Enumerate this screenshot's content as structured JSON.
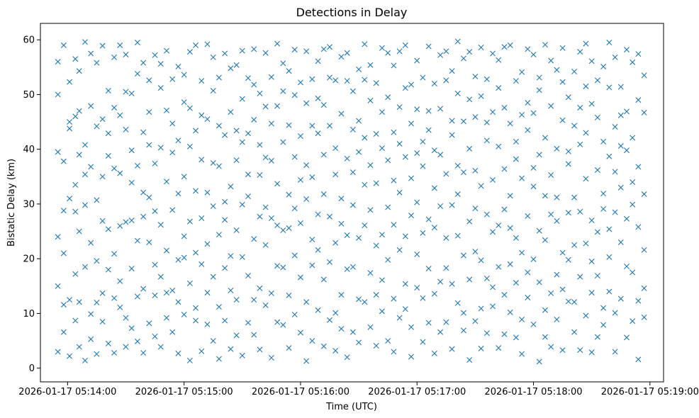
{
  "chart_data": {
    "type": "scatter",
    "title": "Detections in Delay",
    "xlabel": "Time (UTC)",
    "ylabel": "Bistatic Delay (km)",
    "marker": "x",
    "color": "#1f77b4",
    "x_unit": "datetime",
    "xlim": [
      "2026-01-17 05:13:46",
      "2026-01-17 05:19:07"
    ],
    "ylim": [
      -2.5,
      63
    ],
    "x_ticks": [
      "2026-01-17 05:14:00",
      "2026-01-17 05:15:00",
      "2026-01-17 05:16:00",
      "2026-01-17 05:17:00",
      "2026-01-17 05:18:00",
      "2026-01-17 05:19:00"
    ],
    "y_ticks": [
      0,
      10,
      20,
      30,
      40,
      50,
      60
    ],
    "grid": false,
    "legend": "none",
    "points_x": [
      "2026-01-17 05:13:55",
      "2026-01-17 05:13:58",
      "2026-01-17 05:14:01",
      "2026-01-17 05:14:04",
      "2026-01-17 05:14:06",
      "2026-01-17 05:14:09",
      "2026-01-17 05:14:12",
      "2026-01-17 05:14:15",
      "2026-01-17 05:14:18",
      "2026-01-17 05:14:21",
      "2026-01-17 05:14:24",
      "2026-01-17 05:14:27",
      "2026-01-17 05:14:30",
      "2026-01-17 05:14:33",
      "2026-01-17 05:14:36",
      "2026-01-17 05:14:39",
      "2026-01-17 05:14:42",
      "2026-01-17 05:14:45",
      "2026-01-17 05:14:48",
      "2026-01-17 05:14:51",
      "2026-01-17 05:14:54",
      "2026-01-17 05:14:57",
      "2026-01-17 05:15:00",
      "2026-01-17 05:15:03",
      "2026-01-17 05:15:06",
      "2026-01-17 05:15:09",
      "2026-01-17 05:15:12",
      "2026-01-17 05:15:15",
      "2026-01-17 05:15:18",
      "2026-01-17 05:15:21",
      "2026-01-17 05:15:24",
      "2026-01-17 05:15:27",
      "2026-01-17 05:15:30",
      "2026-01-17 05:15:33",
      "2026-01-17 05:15:36",
      "2026-01-17 05:15:39",
      "2026-01-17 05:15:42",
      "2026-01-17 05:15:45",
      "2026-01-17 05:15:48",
      "2026-01-17 05:15:51",
      "2026-01-17 05:15:54",
      "2026-01-17 05:15:57",
      "2026-01-17 05:16:00",
      "2026-01-17 05:16:03",
      "2026-01-17 05:16:06",
      "2026-01-17 05:16:09",
      "2026-01-17 05:16:12",
      "2026-01-17 05:16:15",
      "2026-01-17 05:16:18",
      "2026-01-17 05:16:21",
      "2026-01-17 05:16:24",
      "2026-01-17 05:16:27",
      "2026-01-17 05:16:30",
      "2026-01-17 05:16:33",
      "2026-01-17 05:16:36",
      "2026-01-17 05:16:39",
      "2026-01-17 05:16:42",
      "2026-01-17 05:16:45",
      "2026-01-17 05:16:48",
      "2026-01-17 05:16:51",
      "2026-01-17 05:16:54",
      "2026-01-17 05:16:57",
      "2026-01-17 05:17:00",
      "2026-01-17 05:17:03",
      "2026-01-17 05:17:06",
      "2026-01-17 05:17:09",
      "2026-01-17 05:17:12",
      "2026-01-17 05:17:15",
      "2026-01-17 05:17:18",
      "2026-01-17 05:17:21",
      "2026-01-17 05:17:24",
      "2026-01-17 05:17:27",
      "2026-01-17 05:17:30",
      "2026-01-17 05:17:33",
      "2026-01-17 05:17:36",
      "2026-01-17 05:17:39",
      "2026-01-17 05:17:42",
      "2026-01-17 05:17:45",
      "2026-01-17 05:17:48",
      "2026-01-17 05:17:51",
      "2026-01-17 05:17:54",
      "2026-01-17 05:17:57",
      "2026-01-17 05:18:00",
      "2026-01-17 05:18:03",
      "2026-01-17 05:18:06",
      "2026-01-17 05:18:09",
      "2026-01-17 05:18:12",
      "2026-01-17 05:18:15",
      "2026-01-17 05:18:18",
      "2026-01-17 05:18:21",
      "2026-01-17 05:18:24",
      "2026-01-17 05:18:27",
      "2026-01-17 05:18:30",
      "2026-01-17 05:18:33",
      "2026-01-17 05:18:36",
      "2026-01-17 05:18:39",
      "2026-01-17 05:18:42",
      "2026-01-17 05:18:45",
      "2026-01-17 05:18:48",
      "2026-01-17 05:18:51",
      "2026-01-17 05:18:54",
      "2026-01-17 05:18:57"
    ],
    "points_y": [
      [
        24,
        39.5,
        3,
        56,
        15,
        50
      ],
      [
        6.6,
        21,
        37.8,
        11.6,
        59,
        28.8
      ],
      [
        43.8,
        12.5,
        52.3,
        31,
        45,
        2.2
      ],
      [
        17.2,
        56.5,
        8.7,
        33.5,
        46,
        28.6
      ],
      [
        25,
        12.1,
        54.3,
        39,
        3.9,
        47
      ],
      [
        40.8,
        18.5,
        1.4,
        29.8,
        59.6,
        35.4
      ],
      [
        9.9,
        36.8,
        22.9,
        47.9,
        5.3,
        57.5
      ],
      [
        30.7,
        44.2,
        12,
        55.8,
        19.6,
        2.6
      ],
      [
        45.5,
        26.9,
        58.9,
        13.7,
        35,
        8.5
      ],
      [
        18,
        50.7,
        4.5,
        38.8,
        25.4,
        42.9
      ],
      [
        12.8,
        47.6,
        20.9,
        56.8,
        2.8,
        36.5
      ],
      [
        35.6,
        11.1,
        46.2,
        26,
        59,
        15.9
      ],
      [
        9.2,
        57.3,
        26.7,
        3.9,
        50.5,
        43.6
      ],
      [
        33.9,
        18.2,
        50.2,
        7.3,
        39.8,
        27
      ],
      [
        13.1,
        53.8,
        37,
        23.3,
        4.9,
        59.5
      ],
      [
        27.7,
        43.1,
        55.8,
        14.5,
        32.1,
        2.8
      ],
      [
        8.2,
        23,
        46.8,
        31.2,
        52.6,
        40.8
      ],
      [
        18.9,
        5.8,
        37.4,
        57.2,
        13.3,
        28.7
      ],
      [
        26.2,
        51.2,
        16.7,
        40.3,
        3.9,
        55.6
      ],
      [
        47.1,
        9.2,
        34.1,
        21.5,
        58,
        13.8
      ],
      [
        14.2,
        39.4,
        6.6,
        52.8,
        28.9,
        44.7
      ],
      [
        2.7,
        31.9,
        55.1,
        19.8,
        41.6,
        12.1
      ],
      [
        53.6,
        24.1,
        9.8,
        48.6,
        35,
        20.2
      ],
      [
        26.8,
        1.4,
        40.5,
        57.8,
        15.5,
        47.5
      ],
      [
        11,
        43.4,
        21.1,
        32.4,
        59,
        8.7
      ],
      [
        38.1,
        19,
        52.5,
        3.1,
        27.4,
        46.2
      ],
      [
        8,
        32.1,
        59.2,
        45.5,
        22.7,
        13.8
      ],
      [
        29.6,
        5,
        37.5,
        16.7,
        50.7,
        56.8
      ],
      [
        44.3,
        24.4,
        1.7,
        36.9,
        11.2,
        53.1
      ],
      [
        18.3,
        42.6,
        57.5,
        8.7,
        30.4,
        27.1
      ],
      [
        54.8,
        14.2,
        46.8,
        33.2,
        3.5,
        20.5
      ],
      [
        25.2,
        38,
        12.5,
        55.4,
        43.4,
        6
      ],
      [
        41.3,
        2.3,
        20.3,
        49.2,
        29.9,
        58
      ],
      [
        8.3,
        31.4,
        53,
        16.9,
        42.9,
        35.4
      ],
      [
        51.8,
        23.6,
        6.1,
        45.4,
        58.3,
        12.5
      ],
      [
        35.3,
        14.6,
        27.7,
        3.4,
        40.8,
        50.2
      ],
      [
        47.8,
        29.4,
        57.6,
        11.5,
        22.5,
        38.5
      ],
      [
        13.7,
        53.2,
        37.9,
        1.9,
        27.4,
        44.7
      ],
      [
        26.1,
        8.4,
        47.9,
        59.3,
        33.7,
        18.7
      ],
      [
        55.7,
        41.3,
        18.4,
        25.2,
        7.9,
        50.6
      ],
      [
        3.7,
        31.7,
        44.4,
        13.3,
        54.3,
        25.6
      ],
      [
        20.6,
        49.9,
        9.8,
        38.6,
        58.2,
        29.2
      ],
      [
        6.5,
        42.4,
        26.5,
        52.2,
        16.6,
        34.4
      ],
      [
        48.4,
        12.1,
        57.9,
        30.9,
        1.3,
        37.1
      ],
      [
        23.5,
        52.8,
        34.9,
        5,
        44.3,
        18.8
      ],
      [
        42.9,
        28.1,
        56.1,
        10.6,
        21.6,
        49.3
      ],
      [
        31.8,
        4,
        48.1,
        58.3,
        16.2,
        39
      ],
      [
        58.7,
        19.4,
        27.7,
        44.3,
        8.8,
        53.1
      ],
      [
        10.1,
        35.4,
        52.6,
        22.9,
        40.2,
        3.2
      ],
      [
        26.4,
        56.9,
        13.4,
        46.5,
        31,
        7.2
      ],
      [
        52.5,
        24.3,
        38.3,
        2,
        57.6,
        18.1
      ],
      [
        18.5,
        43.6,
        6.6,
        29.8,
        50.6,
        35.8
      ],
      [
        45.2,
        12.6,
        54.6,
        39.5,
        23.8,
        4.7
      ],
      [
        33.5,
        52.7,
        12.1,
        26.1,
        59.2,
        42.1
      ],
      [
        7.5,
        37.1,
        48.9,
        17.4,
        28.9,
        55.4
      ],
      [
        42.8,
        4.1,
        22.4,
        52.1,
        33.8,
        13.4
      ],
      [
        16.1,
        58.5,
        40.2,
        10.4,
        46.8,
        24.4
      ],
      [
        57.6,
        29.4,
        5,
        38,
        19.8,
        49.5
      ],
      [
        26.2,
        12.7,
        55.3,
        43.1,
        3,
        34.3
      ],
      [
        9.2,
        47.7,
        32.1,
        21.6,
        57.9,
        41
      ],
      [
        38.6,
        24.1,
        10.8,
        59,
        15.4,
        51.2
      ],
      [
        51.8,
        34.7,
        2.1,
        44.7,
        27.9,
        7.5
      ],
      [
        14.7,
        56.2,
        30.3,
        20.8,
        47.3,
        39.3
      ],
      [
        24.7,
        4.8,
        41.4,
        53.1,
        12.8,
        36.9
      ],
      [
        47,
        18.2,
        58.8,
        27.2,
        8.3,
        43.5
      ],
      [
        32.9,
        52,
        13.6,
        39.8,
        25.7,
        2.7
      ],
      [
        6.6,
        39,
        47.4,
        15.8,
        57.2,
        29.6
      ],
      [
        57.9,
        23.8,
        8.4,
        52.6,
        35.5,
        18.3
      ],
      [
        15.4,
        45.2,
        29.8,
        3.5,
        42.6,
        54.3
      ],
      [
        37,
        11.9,
        50.2,
        24.2,
        59.7,
        31.8
      ],
      [
        20.6,
        56.6,
        35.8,
        10.1,
        45.1,
        6.9
      ],
      [
        49.1,
        26.8,
        16.2,
        57.8,
        1.5,
        40.1
      ],
      [
        29.2,
        45.9,
        8.6,
        36.1,
        53.3,
        21.3
      ],
      [
        10.9,
        33.3,
        58.6,
        19.7,
        49.7,
        3.6
      ],
      [
        52.8,
        16.4,
        41.6,
        28.1,
        6.4,
        44.9
      ],
      [
        24.9,
        57.5,
        11.3,
        34.4,
        46.8,
        14.8
      ],
      [
        40.5,
        3.7,
        26.1,
        56.3,
        18.5,
        51.2
      ],
      [
        13.4,
        47.6,
        36.4,
        6.2,
        29,
        58.7
      ],
      [
        59,
        31.5,
        19,
        44.7,
        10.2,
        25.6
      ],
      [
        5.6,
        38.2,
        52.5,
        23.8,
        41.4,
        15.6
      ],
      [
        34.7,
        21.1,
        8.9,
        54.1,
        46.3,
        2.6
      ],
      [
        17.5,
        58.3,
        43.5,
        27.8,
        12.9,
        48.5
      ],
      [
        46.6,
        8,
        33.2,
        57.3,
        19.9,
        36.6
      ],
      [
        25.1,
        53.1,
        15.7,
        1.2,
        39,
        50.8
      ],
      [
        10.6,
        42.1,
        31.5,
        59.1,
        23.4,
        5.7
      ],
      [
        56.2,
        28.1,
        47.9,
        13.7,
        3.9,
        35.3
      ],
      [
        31.2,
        17.1,
        54.5,
        40.1,
        26.9,
        8.9
      ],
      [
        45.3,
        3.3,
        21.1,
        58.5,
        14.4,
        52.3
      ],
      [
        12.2,
        39.6,
        49.5,
        28.4,
        37.3,
        19.8
      ],
      [
        54.2,
        22.5,
        6.6,
        44.3,
        31.2,
        12.1
      ],
      [
        28.6,
        57.8,
        16.7,
        3.3,
        47.6,
        40.9
      ],
      [
        43,
        9.6,
        34.6,
        51.5,
        22.8,
        59.3
      ],
      [
        19.5,
        48.3,
        27,
        13.8,
        56.1,
        2.9
      ],
      [
        36.2,
        5.7,
        45.8,
        24.9,
        16.9,
        52.6
      ],
      [
        55.1,
        31.9,
        11,
        41.4,
        7.9,
        29.1
      ],
      [
        14,
        51.3,
        38.7,
        20.3,
        59.5,
        25.4
      ],
      [
        44.1,
        3,
        28.5,
        56.8,
        35.9,
        10.1
      ],
      [
        23,
        46.2,
        12.7,
        33,
        51.4,
        40.6
      ],
      [
        58.2,
        18.6,
        39.8,
        5.6,
        27.3,
        46.9
      ],
      [
        8.6,
        29.9,
        55.9,
        17.5,
        42.1,
        34
      ],
      [
        36.8,
        12.3,
        49,
        1.6,
        25.8,
        57.4
      ],
      [
        21.6,
        53.5,
        31.8,
        46.7,
        9.3,
        14.6
      ]
    ]
  }
}
